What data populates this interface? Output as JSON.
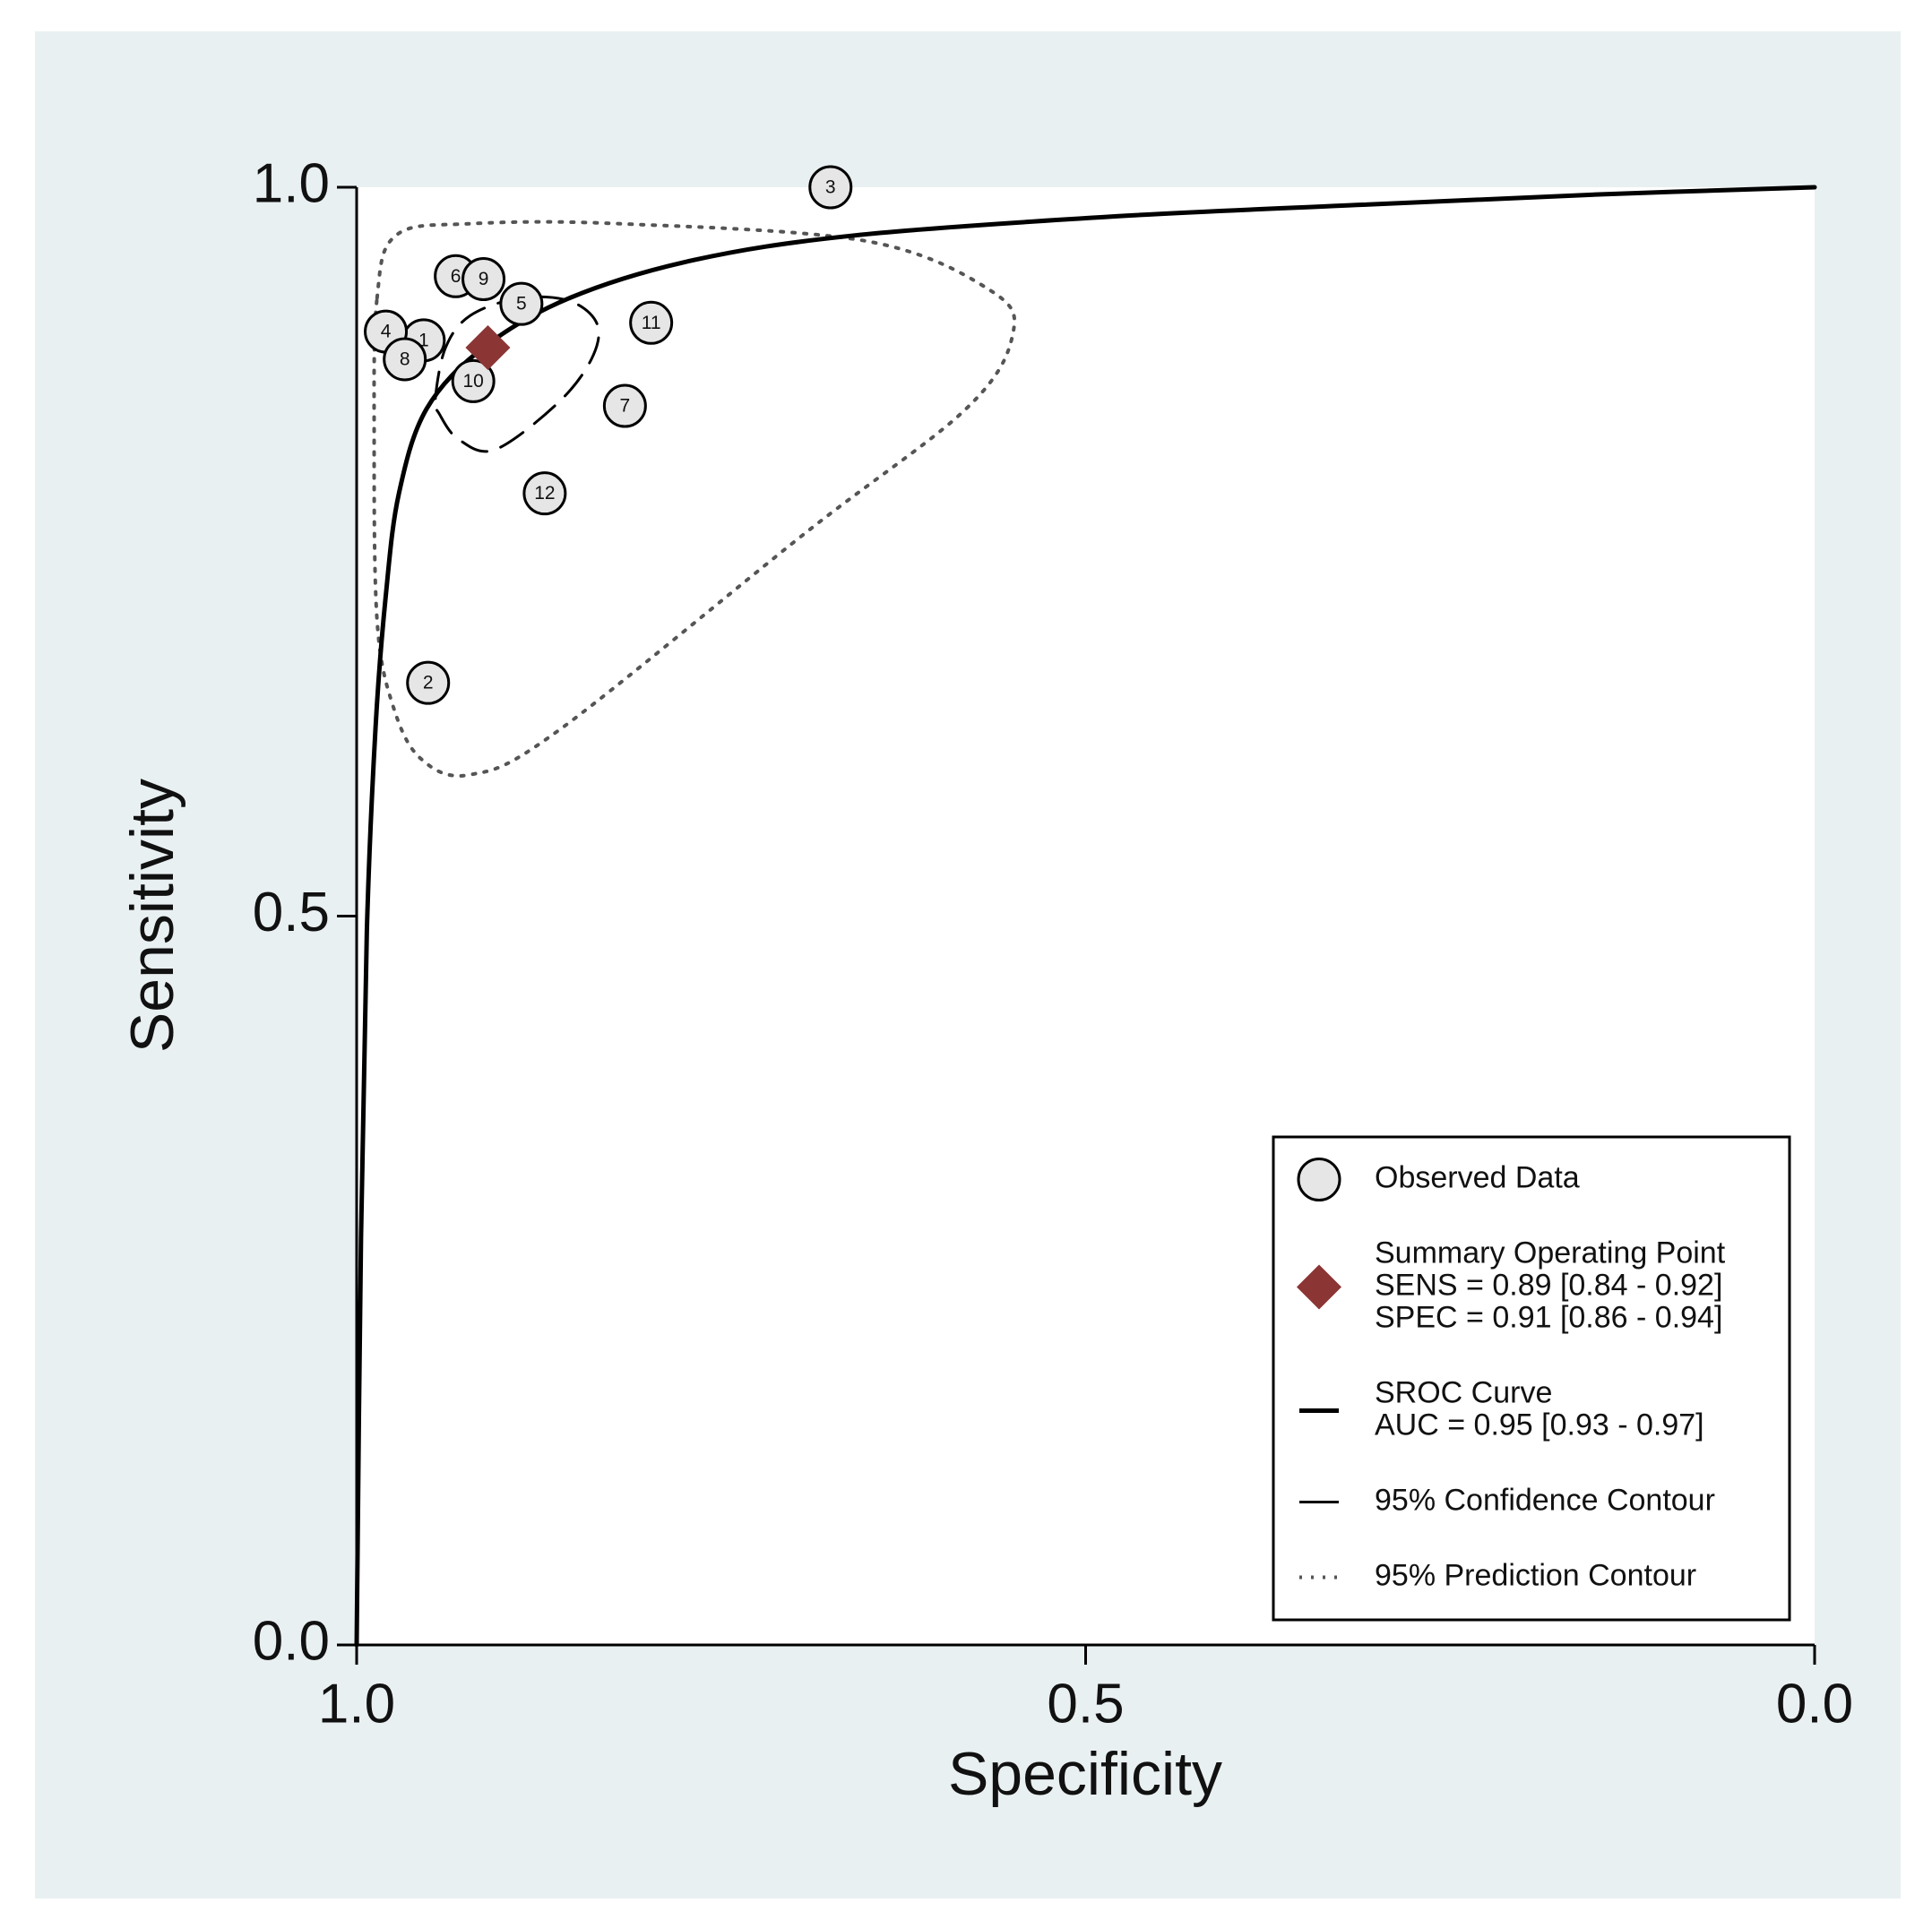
{
  "chart_data": {
    "type": "scatter",
    "xlabel": "Specificity",
    "ylabel": "Sensitivity",
    "xlim": [
      1,
      0
    ],
    "ylim": [
      0,
      1
    ],
    "xticks": [
      {
        "value": 1,
        "label": "1.0"
      },
      {
        "value": 0.5,
        "label": "0.5"
      },
      {
        "value": 0,
        "label": "0.0"
      }
    ],
    "yticks": [
      {
        "value": 0,
        "label": "0.0"
      },
      {
        "value": 0.5,
        "label": "0.5"
      },
      {
        "value": 1,
        "label": "1.0"
      }
    ],
    "legend": "bottom-right",
    "series": [
      {
        "name": "Observed Data",
        "type": "points",
        "color": "#e6e6e6",
        "labels": [
          "1",
          "2",
          "3",
          "4",
          "5",
          "6",
          "7",
          "8",
          "9",
          "10",
          "11",
          "12"
        ],
        "x": [
          0.954,
          0.951,
          0.675,
          0.98,
          0.887,
          0.932,
          0.816,
          0.967,
          0.913,
          0.92,
          0.798,
          0.871
        ],
        "y": [
          0.895,
          0.66,
          1.0,
          0.901,
          0.92,
          0.939,
          0.85,
          0.882,
          0.937,
          0.867,
          0.907,
          0.79
        ]
      },
      {
        "name": "Summary Operating Point",
        "type": "diamond",
        "color": "#8b3535",
        "details": [
          "SENS = 0.89 [0.84 - 0.92]",
          "SPEC = 0.91 [0.86 - 0.94]"
        ],
        "x": [
          0.91
        ],
        "y": [
          0.89
        ]
      },
      {
        "name": "SROC Curve",
        "type": "line",
        "style": "solid",
        "color": "#000000",
        "details": [
          "AUC = 0.95 [0.93 - 0.97]"
        ],
        "x": [
          1.0,
          0.997,
          0.993,
          0.987,
          0.98,
          0.971,
          0.952,
          0.913,
          0.854,
          0.769,
          0.658,
          0.48,
          0.31,
          0.15,
          0.0
        ],
        "y": [
          0.0,
          0.28,
          0.49,
          0.63,
          0.72,
          0.79,
          0.848,
          0.89,
          0.924,
          0.95,
          0.967,
          0.98,
          0.988,
          0.995,
          1.0
        ]
      },
      {
        "name": "95% Confidence Contour",
        "type": "contour",
        "style": "dashed",
        "color": "#000000",
        "x": [
          0.946,
          0.939,
          0.922,
          0.888,
          0.854,
          0.835,
          0.839,
          0.862,
          0.905,
          0.93,
          0.943
        ],
        "y": [
          0.855,
          0.89,
          0.912,
          0.924,
          0.922,
          0.906,
          0.882,
          0.852,
          0.82,
          0.827,
          0.844
        ]
      },
      {
        "name": "95% Prediction Contour",
        "type": "contour",
        "style": "dotted",
        "color": "#555555",
        "x": [
          0.986,
          0.973,
          0.922,
          0.82,
          0.65,
          0.565,
          0.55,
          0.582,
          0.692,
          0.862,
          0.922,
          0.956,
          0.975,
          0.986,
          0.988
        ],
        "y": [
          0.924,
          0.967,
          0.975,
          0.975,
          0.963,
          0.929,
          0.899,
          0.848,
          0.763,
          0.627,
          0.597,
          0.608,
          0.644,
          0.703,
          0.831
        ]
      }
    ]
  }
}
